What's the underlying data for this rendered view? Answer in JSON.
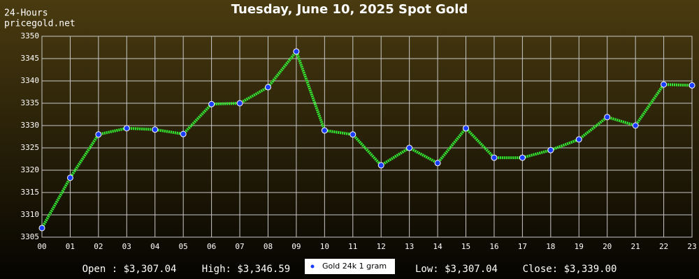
{
  "chart_data": {
    "type": "line",
    "title": "Tuesday, June 10, 2025 Spot Gold",
    "subtitle": [
      "24-Hours",
      "pricegold.net"
    ],
    "categories": [
      "00",
      "01",
      "02",
      "03",
      "04",
      "05",
      "06",
      "07",
      "08",
      "09",
      "10",
      "11",
      "12",
      "13",
      "14",
      "15",
      "16",
      "17",
      "18",
      "19",
      "20",
      "21",
      "22",
      "23"
    ],
    "series": [
      {
        "name": "Gold 24k 1 gram",
        "color": "#33ee33",
        "marker_color": "#1a3cff",
        "values": [
          3307.04,
          3318.3,
          3328.0,
          3329.4,
          3329.1,
          3328.1,
          3334.8,
          3335.0,
          3338.6,
          3346.59,
          3328.9,
          3328.0,
          3321.1,
          3325.0,
          3321.6,
          3329.4,
          3322.8,
          3322.8,
          3324.5,
          3326.9,
          3331.9,
          3330.0,
          3339.2,
          3339.0
        ]
      }
    ],
    "ylim": [
      3305,
      3350
    ],
    "yticks": [
      3305,
      3310,
      3315,
      3320,
      3325,
      3330,
      3335,
      3340,
      3345,
      3350
    ],
    "grid": true,
    "footer": [
      "Open : $3,307.04",
      "High: $3,346.59",
      "Low: $3,307.04",
      "Close: $3,339.00"
    ]
  }
}
